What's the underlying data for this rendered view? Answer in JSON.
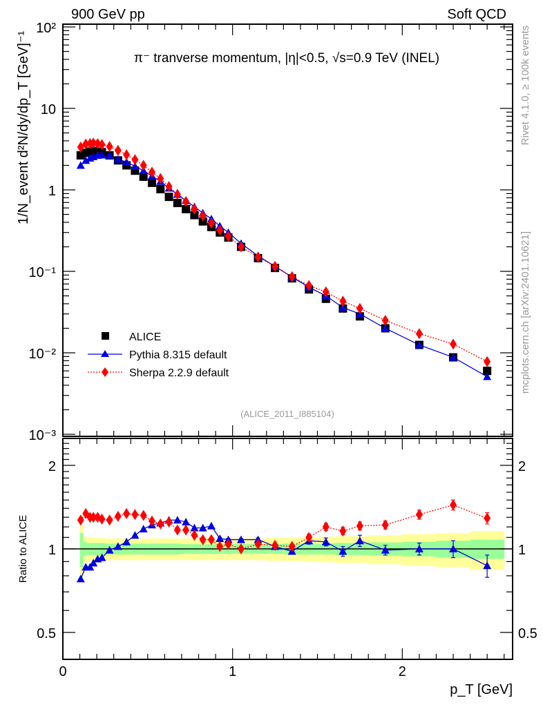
{
  "header": {
    "left": "900 GeV pp",
    "right": "Soft QCD"
  },
  "side_labels": {
    "rivet": "Rivet 4.1.0, ≥ 100k events",
    "mcplots": "mcplots.cern.ch [arXiv:2401.10621]"
  },
  "chart_data": [
    {
      "type": "scatter",
      "panel": "main",
      "title": "π⁻ tranverse momentum, |η|<0.5, √s=0.9 TeV (INEL)",
      "xlabel": "p_T [GeV]",
      "ylabel": "1/N_event d²N/dy/dp_T [GeV]⁻¹",
      "yscale": "log",
      "xlim": [
        0,
        2.65
      ],
      "ylim": [
        0.001,
        100
      ],
      "yticks": [
        {
          "value": 100,
          "label": "10²"
        },
        {
          "value": 10,
          "label": "10"
        },
        {
          "value": 1,
          "label": "1"
        },
        {
          "value": 0.1,
          "label": "10⁻¹"
        },
        {
          "value": 0.01,
          "label": "10⁻²"
        },
        {
          "value": 0.001,
          "label": "10⁻³"
        }
      ],
      "watermark": "(ALICE_2011_I885104)",
      "legend_position": "lower-left",
      "x": [
        0.105,
        0.135,
        0.16,
        0.18,
        0.205,
        0.23,
        0.275,
        0.325,
        0.375,
        0.425,
        0.475,
        0.525,
        0.575,
        0.625,
        0.675,
        0.725,
        0.775,
        0.825,
        0.875,
        0.925,
        0.975,
        1.05,
        1.15,
        1.25,
        1.35,
        1.45,
        1.55,
        1.65,
        1.75,
        1.9,
        2.1,
        2.3,
        2.5
      ],
      "series": [
        {
          "name": "ALICE",
          "marker": "square",
          "color": "#000000",
          "values": [
            2.65,
            2.85,
            2.95,
            3.0,
            2.95,
            2.9,
            2.65,
            2.3,
            2.0,
            1.72,
            1.45,
            1.22,
            1.02,
            0.82,
            0.69,
            0.58,
            0.49,
            0.41,
            0.35,
            0.3,
            0.26,
            0.2,
            0.145,
            0.11,
            0.082,
            0.06,
            0.046,
            0.035,
            0.028,
            0.02,
            0.0125,
            0.0088,
            0.006
          ]
        },
        {
          "name": "Pythia 8.315 default",
          "marker": "triangle",
          "line": "solid",
          "color": "#0000dd",
          "values": [
            2.0,
            2.3,
            2.45,
            2.55,
            2.65,
            2.68,
            2.65,
            2.38,
            2.2,
            1.95,
            1.72,
            1.48,
            1.27,
            1.05,
            0.88,
            0.74,
            0.62,
            0.52,
            0.44,
            0.36,
            0.3,
            0.22,
            0.155,
            0.115,
            0.085,
            0.064,
            0.05,
            0.036,
            0.03,
            0.02,
            0.0125,
            0.0088,
            0.0051
          ]
        },
        {
          "name": "Sherpa 2.2.9 default",
          "marker": "diamond",
          "line": "dotted",
          "color": "#ff0000",
          "values": [
            3.35,
            3.65,
            3.7,
            3.75,
            3.7,
            3.6,
            3.4,
            3.05,
            2.7,
            2.35,
            2.0,
            1.65,
            1.38,
            1.1,
            0.88,
            0.72,
            0.58,
            0.48,
            0.39,
            0.32,
            0.27,
            0.2,
            0.15,
            0.115,
            0.086,
            0.067,
            0.056,
            0.043,
            0.035,
            0.025,
            0.0172,
            0.0128,
            0.0078
          ]
        }
      ]
    },
    {
      "type": "scatter",
      "panel": "ratio",
      "ylabel": "Ratio to ALICE",
      "xlabel": "p_T [GeV]",
      "yscale": "log",
      "xlim": [
        0,
        2.65
      ],
      "ylim": [
        0.4,
        2.5
      ],
      "yticks": [
        {
          "value": 2,
          "label": "2"
        },
        {
          "value": 1,
          "label": "1"
        },
        {
          "value": 0.5,
          "label": "0.5"
        }
      ],
      "xticks": [
        {
          "value": 0,
          "label": "0"
        },
        {
          "value": 1,
          "label": "1"
        },
        {
          "value": 2,
          "label": "2"
        }
      ],
      "x": [
        0.105,
        0.135,
        0.16,
        0.18,
        0.205,
        0.23,
        0.275,
        0.325,
        0.375,
        0.425,
        0.475,
        0.525,
        0.575,
        0.625,
        0.675,
        0.725,
        0.775,
        0.825,
        0.875,
        0.925,
        0.975,
        1.05,
        1.15,
        1.25,
        1.35,
        1.45,
        1.55,
        1.65,
        1.75,
        1.9,
        2.1,
        2.3,
        2.5
      ],
      "bin_edges": [
        0.1,
        0.12,
        0.14,
        0.16,
        0.18,
        0.2,
        0.25,
        0.3,
        0.35,
        0.4,
        0.45,
        0.5,
        0.55,
        0.6,
        0.65,
        0.7,
        0.75,
        0.8,
        0.85,
        0.9,
        0.95,
        1.0,
        1.1,
        1.2,
        1.3,
        1.4,
        1.5,
        1.6,
        1.7,
        1.8,
        2.0,
        2.2,
        2.4,
        2.6
      ],
      "band_stat": {
        "name": "ALICE stat",
        "color": "#99ff99",
        "half_width": [
          0.14,
          0.06,
          0.05,
          0.05,
          0.05,
          0.05,
          0.045,
          0.045,
          0.045,
          0.045,
          0.045,
          0.045,
          0.045,
          0.045,
          0.045,
          0.04,
          0.04,
          0.04,
          0.04,
          0.04,
          0.04,
          0.04,
          0.04,
          0.04,
          0.045,
          0.045,
          0.045,
          0.05,
          0.05,
          0.055,
          0.06,
          0.07,
          0.08
        ]
      },
      "band_total": {
        "name": "ALICE total",
        "color": "#ffff99",
        "half_width": [
          0.22,
          0.11,
          0.1,
          0.1,
          0.095,
          0.095,
          0.09,
          0.09,
          0.09,
          0.09,
          0.09,
          0.09,
          0.09,
          0.09,
          0.09,
          0.09,
          0.09,
          0.09,
          0.09,
          0.09,
          0.09,
          0.09,
          0.09,
          0.095,
          0.095,
          0.1,
          0.105,
          0.11,
          0.11,
          0.12,
          0.13,
          0.14,
          0.16
        ]
      },
      "series": [
        {
          "name": "Pythia 8.315 default",
          "color": "#0000dd",
          "values": [
            0.78,
            0.86,
            0.86,
            0.89,
            0.92,
            0.93,
            0.99,
            1.02,
            1.06,
            1.12,
            1.18,
            1.22,
            1.24,
            1.27,
            1.27,
            1.25,
            1.19,
            1.19,
            1.21,
            1.09,
            1.08,
            1.08,
            1.08,
            1.02,
            0.98,
            1.07,
            1.06,
            0.98,
            1.07,
            0.99,
            1.0,
            1.0,
            0.87
          ],
          "errors": [
            0,
            0,
            0,
            0,
            0,
            0,
            0,
            0,
            0,
            0,
            0,
            0,
            0,
            0,
            0,
            0,
            0,
            0,
            0,
            0.01,
            0.01,
            0.01,
            0.015,
            0.015,
            0.02,
            0.03,
            0.035,
            0.04,
            0.05,
            0.04,
            0.05,
            0.07,
            0.08
          ]
        },
        {
          "name": "Sherpa 2.2.9 default",
          "color": "#ff0000",
          "values": [
            1.27,
            1.34,
            1.3,
            1.3,
            1.3,
            1.28,
            1.27,
            1.31,
            1.34,
            1.33,
            1.32,
            1.26,
            1.23,
            1.25,
            1.17,
            1.17,
            1.12,
            1.08,
            1.08,
            1.02,
            1.04,
            1.0,
            1.04,
            1.03,
            1.02,
            1.1,
            1.2,
            1.16,
            1.21,
            1.22,
            1.33,
            1.44,
            1.29
          ],
          "errors": [
            0,
            0,
            0,
            0,
            0,
            0,
            0,
            0,
            0,
            0,
            0,
            0,
            0,
            0,
            0,
            0,
            0,
            0,
            0,
            0.01,
            0.01,
            0.01,
            0.015,
            0.015,
            0.02,
            0.03,
            0.035,
            0.035,
            0.04,
            0.04,
            0.05,
            0.06,
            0.06
          ]
        }
      ]
    }
  ]
}
